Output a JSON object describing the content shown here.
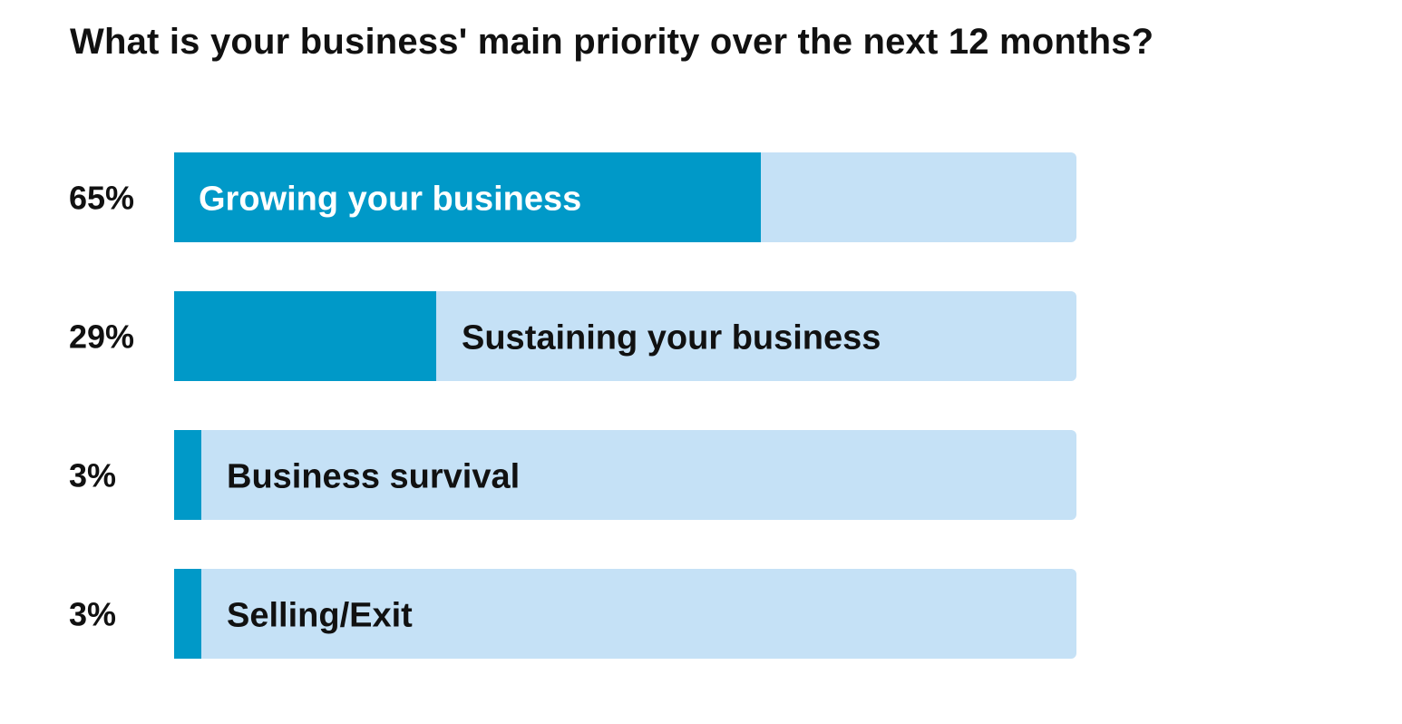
{
  "chart_data": {
    "type": "bar",
    "orientation": "horizontal",
    "title": "What is your business' main priority over the next 12 months?",
    "categories": [
      "Growing your business",
      "Sustaining your business",
      "Business survival",
      "Selling/Exit"
    ],
    "values": [
      65,
      29,
      3,
      3
    ],
    "value_labels": [
      "65%",
      "29%",
      "3%",
      "3%"
    ],
    "xlim": [
      0,
      100
    ],
    "grid": false,
    "legend": "none",
    "colors": {
      "fill": "#0099c8",
      "track": "#c5e1f6",
      "label_on_fill": "#ffffff",
      "label_on_track": "#111111"
    }
  }
}
